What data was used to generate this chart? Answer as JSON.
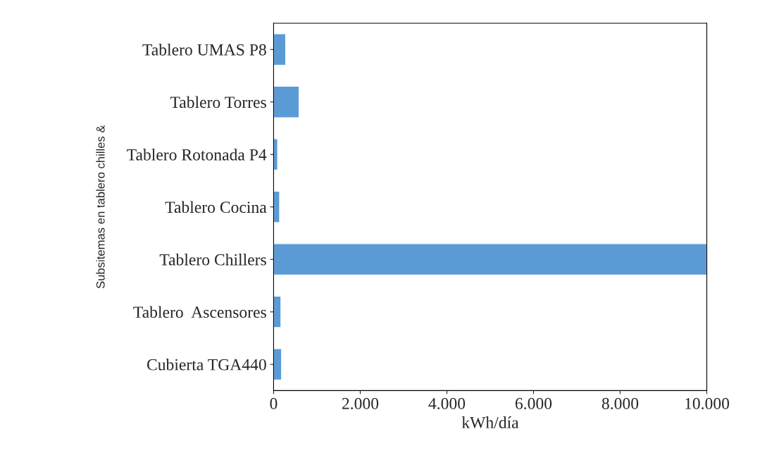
{
  "chart_data": {
    "type": "bar",
    "orientation": "horizontal",
    "xlabel": "kWh/día",
    "ylabel": "Subsitemas en tablero chilles &",
    "categories": [
      "Tablero UMAS P8",
      "Tablero Torres",
      "Tablero Rotonada P4",
      "Tablero Cocina",
      "Tablero Chillers",
      "Tablero  Ascensores",
      "Cubierta TGA440"
    ],
    "values": [
      280,
      590,
      95,
      140,
      10000,
      170,
      185
    ],
    "color": "#5b9bd5",
    "xlim": [
      0,
      10000
    ],
    "xticks": [
      {
        "value": 0,
        "label": "0"
      },
      {
        "value": 2000,
        "label": "2.000"
      },
      {
        "value": 4000,
        "label": "4.000"
      },
      {
        "value": 6000,
        "label": "6.000"
      },
      {
        "value": 8000,
        "label": "8.000"
      },
      {
        "value": 10000,
        "label": "10.000"
      }
    ],
    "grid": false,
    "legend": false
  }
}
